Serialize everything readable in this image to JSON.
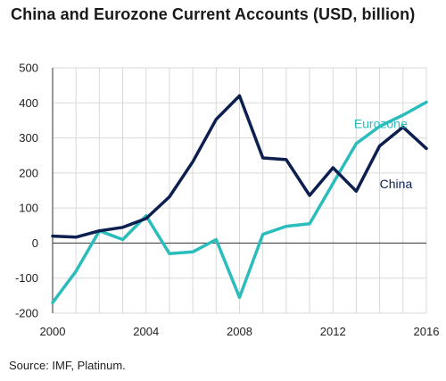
{
  "title": "China and Eurozone Current Accounts (USD, billion)",
  "source": "Source: IMF, Platinum.",
  "chart_data": {
    "type": "line",
    "title": "China and Eurozone Current Accounts (USD, billion)",
    "xlabel": "",
    "ylabel": "",
    "xlim": [
      2000,
      2016
    ],
    "ylim": [
      -200,
      500
    ],
    "x_ticks": [
      2000,
      2004,
      2008,
      2012,
      2016
    ],
    "y_ticks": [
      -200,
      -100,
      0,
      100,
      200,
      300,
      400,
      500
    ],
    "grid": true,
    "x": [
      2000,
      2001,
      2002,
      2003,
      2004,
      2005,
      2006,
      2007,
      2008,
      2009,
      2010,
      2011,
      2012,
      2013,
      2014,
      2015,
      2016
    ],
    "series": [
      {
        "name": "China",
        "color": "#0d1f4f",
        "values": [
          20,
          17,
          35,
          45,
          70,
          132,
          232,
          353,
          420,
          243,
          238,
          136,
          215,
          148,
          277,
          331,
          270
        ]
      },
      {
        "name": "Eurozone",
        "color": "#2bbcbc",
        "values": [
          -170,
          -80,
          35,
          10,
          78,
          -30,
          -25,
          10,
          -155,
          25,
          48,
          55,
          170,
          284,
          333,
          365,
          402
        ]
      }
    ]
  }
}
